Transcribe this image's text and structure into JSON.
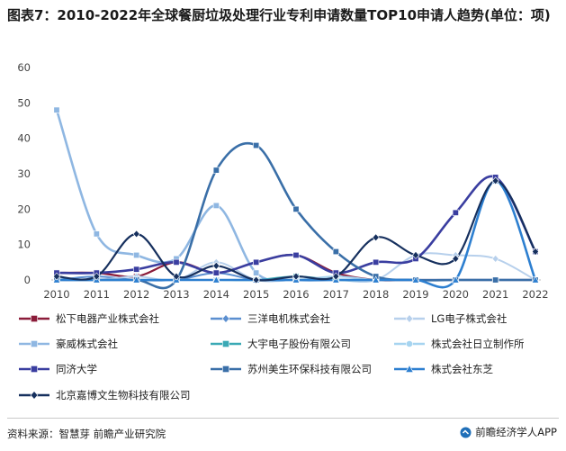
{
  "title": "图表7：2010-2022年全球餐厨垃圾处理行业专利申请数量TOP10申请人趋势(单位：项)",
  "source": "资料来源：智慧芽 前瞻产业研究院",
  "brand": "前瞻经济学人APP",
  "chart_data": {
    "type": "line",
    "title": "图表7：2010-2022年全球餐厨垃圾处理行业专利申请数量TOP10申请人趋势(单位：项)",
    "xlabel": "",
    "ylabel": "",
    "ylim": [
      0,
      60
    ],
    "yticks": [
      0,
      10,
      20,
      30,
      40,
      50,
      60
    ],
    "grid": false,
    "legend_position": "bottom",
    "x": [
      "2010",
      "2011",
      "2012",
      "2013",
      "2014",
      "2015",
      "2016",
      "2017",
      "2018",
      "2019",
      "2020",
      "2021",
      "2022"
    ],
    "series": [
      {
        "name": "松下电器产业株式会社",
        "color": "#8b1c3a",
        "marker": "square",
        "values": [
          2,
          2,
          1,
          5,
          2,
          5,
          7,
          2,
          0,
          0,
          0,
          0,
          0
        ]
      },
      {
        "name": "三洋电机株式会社",
        "color": "#5b8fd0",
        "marker": "diamond",
        "values": [
          0,
          1,
          0,
          0,
          2,
          0,
          0,
          0,
          0,
          0,
          0,
          0,
          0
        ]
      },
      {
        "name": "LG电子株式会社",
        "color": "#b7d0ec",
        "marker": "diamond",
        "values": [
          0,
          0,
          1,
          0,
          5,
          0,
          0,
          0,
          0,
          7,
          7,
          6,
          0
        ]
      },
      {
        "name": "豪威株式会社",
        "color": "#8fb7e2",
        "marker": "square",
        "values": [
          48,
          13,
          7,
          6,
          21,
          2,
          0,
          0,
          0,
          0,
          0,
          0,
          0
        ]
      },
      {
        "name": "大宇电子股份有限公司",
        "color": "#3aa9b5",
        "marker": "square",
        "values": [
          0,
          0,
          0,
          0,
          0,
          0,
          1,
          0,
          0,
          0,
          0,
          0,
          0
        ]
      },
      {
        "name": "株式会社日立制作所",
        "color": "#a6d4f0",
        "marker": "circle",
        "values": [
          0,
          0,
          0,
          0,
          0,
          0,
          0,
          1,
          0,
          0,
          0,
          0,
          0
        ]
      },
      {
        "name": "同济大学",
        "color": "#3a3ea0",
        "marker": "square",
        "values": [
          2,
          2,
          3,
          5,
          2,
          5,
          7,
          2,
          5,
          6,
          19,
          29,
          8
        ]
      },
      {
        "name": "苏州美生环保科技有限公司",
        "color": "#3a6fa8",
        "marker": "square",
        "values": [
          0,
          0,
          0,
          0,
          31,
          38,
          20,
          8,
          1,
          0,
          0,
          0,
          0
        ]
      },
      {
        "name": "株式会社东芝",
        "color": "#2d7fd0",
        "marker": "triangle",
        "values": [
          0,
          0,
          0,
          0,
          0,
          0,
          0,
          0,
          0,
          0,
          0,
          28,
          0
        ]
      },
      {
        "name": "北京嘉博文生物科技有限公司",
        "color": "#16305e",
        "marker": "diamond",
        "values": [
          1,
          1,
          13,
          1,
          4,
          0,
          1,
          1,
          12,
          7,
          6,
          28,
          8
        ]
      }
    ]
  }
}
